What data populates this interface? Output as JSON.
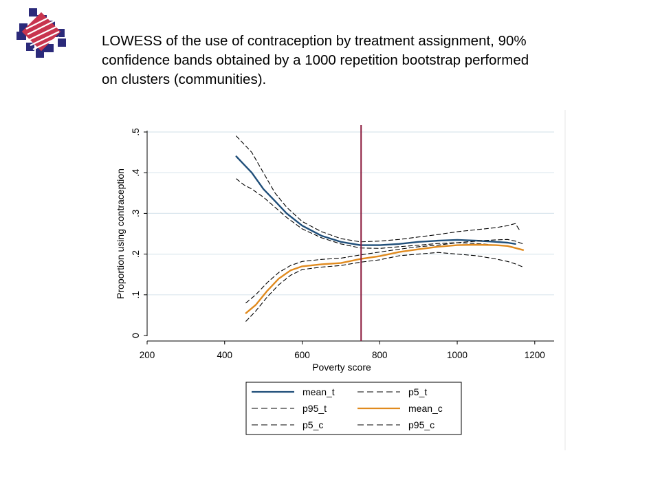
{
  "slide": {
    "title_lines": [
      "LOWESS of the use of contraception by treatment assignment, 90%",
      "confidence bands obtained by a 1000 repetition bootstrap performed",
      "on clusters (communities)."
    ]
  },
  "chart_data": {
    "type": "line",
    "xlabel": "Poverty score",
    "ylabel": "Proportion using contraception",
    "xlim": [
      200,
      1250
    ],
    "ylim": [
      0,
      0.5
    ],
    "xticks": [
      200,
      400,
      600,
      800,
      1000,
      1200
    ],
    "xtick_labels": [
      "200",
      "400",
      "600",
      "800",
      "1000",
      "1200"
    ],
    "yticks": [
      0,
      0.1,
      0.2,
      0.3,
      0.4,
      0.5
    ],
    "ytick_labels": [
      "0",
      ".1",
      ".2",
      ".3",
      ".4",
      ".5"
    ],
    "grid": "horizontal",
    "legend_position": "bottom",
    "reference_line": {
      "x": 752,
      "color": "#8b1a3c"
    },
    "colors": {
      "treatment": "#1f4e79",
      "control": "#e08a1e",
      "band": "#000000",
      "grid": "#dbe7ee"
    },
    "series": [
      {
        "name": "mean_t",
        "style": "solid",
        "color": "#1f4e79",
        "x": [
          430,
          450,
          470,
          500,
          530,
          560,
          600,
          650,
          700,
          750,
          800,
          850,
          900,
          950,
          1000,
          1050,
          1100,
          1130,
          1150
        ],
        "y": [
          0.44,
          0.42,
          0.4,
          0.36,
          0.33,
          0.3,
          0.27,
          0.245,
          0.23,
          0.222,
          0.222,
          0.225,
          0.23,
          0.233,
          0.235,
          0.233,
          0.23,
          0.228,
          0.225
        ]
      },
      {
        "name": "p5_t",
        "style": "dash",
        "color": "#000000",
        "x": [
          430,
          450,
          470,
          500,
          530,
          560,
          600,
          650,
          700,
          750,
          800,
          850,
          900,
          950,
          1000,
          1050,
          1100,
          1130,
          1150
        ],
        "y": [
          0.385,
          0.37,
          0.36,
          0.34,
          0.315,
          0.29,
          0.262,
          0.24,
          0.225,
          0.215,
          0.214,
          0.218,
          0.222,
          0.226,
          0.228,
          0.226,
          0.222,
          0.22,
          0.215
        ]
      },
      {
        "name": "p95_t",
        "style": "dash",
        "color": "#000000",
        "x": [
          430,
          450,
          470,
          500,
          530,
          560,
          600,
          650,
          700,
          750,
          800,
          850,
          900,
          950,
          1000,
          1050,
          1100,
          1130,
          1150,
          1160
        ],
        "y": [
          0.49,
          0.47,
          0.45,
          0.4,
          0.35,
          0.315,
          0.28,
          0.255,
          0.238,
          0.23,
          0.232,
          0.236,
          0.242,
          0.248,
          0.255,
          0.26,
          0.265,
          0.27,
          0.275,
          0.26
        ]
      },
      {
        "name": "mean_c",
        "style": "solid",
        "color": "#e08a1e",
        "x": [
          455,
          480,
          510,
          540,
          570,
          600,
          650,
          700,
          750,
          800,
          850,
          900,
          950,
          1000,
          1050,
          1100,
          1130,
          1150,
          1170
        ],
        "y": [
          0.055,
          0.075,
          0.11,
          0.14,
          0.16,
          0.17,
          0.175,
          0.178,
          0.188,
          0.195,
          0.205,
          0.212,
          0.218,
          0.222,
          0.223,
          0.222,
          0.22,
          0.215,
          0.21
        ]
      },
      {
        "name": "p95_c",
        "style": "dash",
        "color": "#000000",
        "x": [
          455,
          480,
          510,
          540,
          570,
          600,
          650,
          700,
          750,
          800,
          850,
          900,
          950,
          1000,
          1050,
          1100,
          1130,
          1150,
          1170
        ],
        "y": [
          0.08,
          0.1,
          0.13,
          0.155,
          0.172,
          0.182,
          0.187,
          0.19,
          0.198,
          0.205,
          0.212,
          0.218,
          0.222,
          0.228,
          0.232,
          0.235,
          0.236,
          0.232,
          0.225
        ]
      },
      {
        "name": "p5_c",
        "style": "dash",
        "color": "#000000",
        "x": [
          455,
          480,
          510,
          540,
          570,
          600,
          650,
          700,
          750,
          800,
          850,
          900,
          950,
          1000,
          1050,
          1100,
          1130,
          1150,
          1170
        ],
        "y": [
          0.035,
          0.06,
          0.095,
          0.125,
          0.148,
          0.162,
          0.168,
          0.172,
          0.18,
          0.186,
          0.196,
          0.2,
          0.204,
          0.2,
          0.196,
          0.188,
          0.182,
          0.176,
          0.168
        ]
      }
    ],
    "legend_layout": [
      [
        "mean_t",
        "p5_t"
      ],
      [
        "p95_t",
        "mean_c"
      ],
      [
        "p5_c",
        "p95_c"
      ]
    ]
  }
}
